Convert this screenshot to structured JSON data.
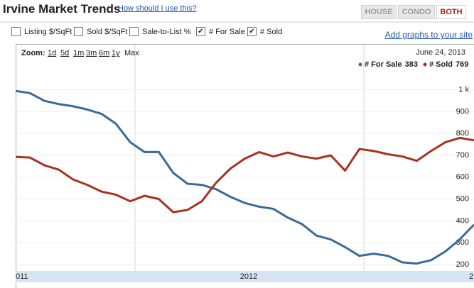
{
  "header": {
    "title": "Irvine Market Trends",
    "help_link": "How should I use this?",
    "tabs": [
      "HOUSE",
      "CONDO",
      "BOTH"
    ],
    "active_tab": 2
  },
  "options": [
    {
      "label": "Listing $/SqFt",
      "checked": false
    },
    {
      "label": "Sold $/SqFt",
      "checked": false
    },
    {
      "label": "Sale-to-List %",
      "checked": false
    },
    {
      "label": "# For Sale",
      "checked": true
    },
    {
      "label": "# Sold",
      "checked": true
    }
  ],
  "add_link": "Add graphs to your site",
  "zoom": {
    "label": "Zoom:",
    "links": [
      "1d",
      "5d",
      "1m",
      "3m",
      "6m",
      "1y"
    ],
    "current": "Max"
  },
  "date": "June 24, 2013",
  "navigator_labels": [
    "011",
    "2012",
    "2"
  ],
  "chart_data": {
    "type": "line",
    "series": [
      {
        "name": "# For Sale",
        "color": "#3a6a9a",
        "values": [
          995,
          985,
          950,
          935,
          925,
          910,
          890,
          845,
          760,
          715,
          715,
          620,
          570,
          565,
          545,
          510,
          482,
          465,
          455,
          415,
          385,
          333,
          315,
          280,
          240,
          250,
          240,
          210,
          205,
          220,
          260,
          315,
          383
        ]
      },
      {
        "name": "# Sold",
        "color": "#a83222",
        "values": [
          693,
          690,
          655,
          635,
          590,
          565,
          534,
          520,
          490,
          515,
          500,
          440,
          450,
          490,
          575,
          640,
          685,
          715,
          695,
          713,
          695,
          685,
          700,
          630,
          729,
          720,
          705,
          695,
          675,
          720,
          760,
          780,
          769
        ]
      }
    ],
    "ylim": [
      175,
      1030
    ],
    "yticks": [
      200,
      300,
      400,
      500,
      600,
      700,
      800,
      900,
      {
        "value": 1000,
        "label": "1 k"
      }
    ],
    "grid": true
  }
}
